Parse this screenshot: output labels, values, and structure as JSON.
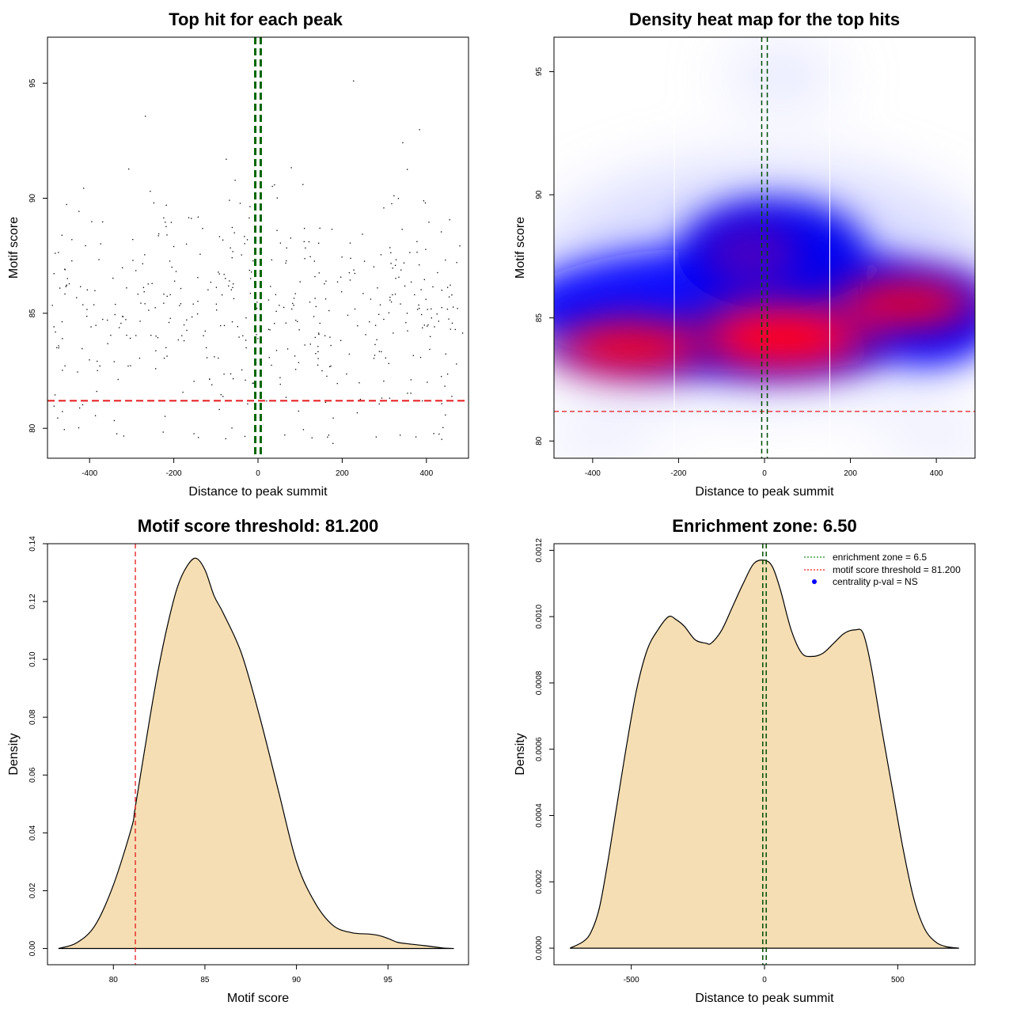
{
  "chart_data": [
    {
      "type": "scatter",
      "title": "Top hit for each peak",
      "xlabel": "Distance to peak summit",
      "ylabel": "Motif score",
      "xlim": [
        -500,
        500
      ],
      "ylim": [
        78.7,
        97.0
      ],
      "x_ticks": [
        "-400",
        "-200",
        "0",
        "200",
        "400"
      ],
      "y_ticks": [
        "80",
        "85",
        "90",
        "95"
      ],
      "threshold_y": 81.2,
      "center_lines_x": [
        -6.5,
        6.5
      ],
      "line_colors": {
        "threshold": "#e41a1c",
        "center": "#006400"
      },
      "point_color": "#000000"
    },
    {
      "type": "heatmap",
      "title": "Density heat map for the top hits",
      "xlabel": "Distance to peak summit",
      "ylabel": "Motif score",
      "xlim": [
        -490,
        490
      ],
      "ylim": [
        79.3,
        96.4
      ],
      "x_ticks": [
        "-400",
        "-200",
        "0",
        "200",
        "400"
      ],
      "y_ticks": [
        "80",
        "85",
        "90",
        "95"
      ],
      "zone_lines_x": [
        -210,
        152
      ],
      "threshold_y": 81.2,
      "center_lines_x": [
        -6.5,
        6.5
      ],
      "colors": {
        "low": "#ffffff",
        "mid": "#0000ff",
        "high": "#ff0000"
      },
      "hotspots": [
        {
          "x": 40,
          "y": 84.2,
          "intensity": 1.0
        },
        {
          "x": -310,
          "y": 83.8,
          "intensity": 0.7
        },
        {
          "x": 330,
          "y": 85.6,
          "intensity": 0.6
        }
      ]
    },
    {
      "type": "area",
      "title": "Motif score threshold: 81.200",
      "xlabel": "Motif score",
      "ylabel": "Density",
      "xlim": [
        76.4,
        99.4
      ],
      "ylim": [
        -0.0056,
        0.14
      ],
      "x_ticks": [
        "80",
        "85",
        "90",
        "95"
      ],
      "y_ticks": [
        "0.00",
        "0.02",
        "0.04",
        "0.06",
        "0.08",
        "0.10",
        "0.12",
        "0.14"
      ],
      "threshold_x": 81.2,
      "fill_color": "#f5deb3",
      "x": [
        77.0,
        78.0,
        79.0,
        80.0,
        81.0,
        81.2,
        82.0,
        82.5,
        83.0,
        83.5,
        84.0,
        84.5,
        85.0,
        85.5,
        86.0,
        87.0,
        88.0,
        89.0,
        90.0,
        91.0,
        92.0,
        93.0,
        94.0,
        94.5,
        95.0,
        95.5,
        96.0,
        97.0,
        98.0,
        98.6
      ],
      "y": [
        0.0,
        0.002,
        0.008,
        0.022,
        0.042,
        0.049,
        0.08,
        0.098,
        0.113,
        0.125,
        0.132,
        0.135,
        0.131,
        0.122,
        0.116,
        0.102,
        0.08,
        0.055,
        0.03,
        0.016,
        0.008,
        0.0055,
        0.005,
        0.0045,
        0.0035,
        0.0022,
        0.0017,
        0.001,
        0.0002,
        0.0
      ]
    },
    {
      "type": "area",
      "title": "Enrichment zone: 6.50",
      "xlabel": "Distance to peak summit",
      "ylabel": "Density",
      "xlim": [
        -790,
        790
      ],
      "ylim": [
        -5e-05,
        0.00122
      ],
      "x_ticks": [
        "-500",
        "0",
        "500"
      ],
      "y_ticks": [
        "0.0000",
        "0.0002",
        "0.0004",
        "0.0006",
        "0.0008",
        "0.0010",
        "0.0012"
      ],
      "center_lines_x": [
        -6.5,
        6.5
      ],
      "fill_color": "#f5deb3",
      "legend": {
        "position": "top-right",
        "entries": [
          {
            "label": "enrichment zone = 6.5",
            "color": "#228b22",
            "style": "dotted-line"
          },
          {
            "label": "motif score threshold = 81.200",
            "color": "#e41a1c",
            "style": "dotted-line"
          },
          {
            "label": "centrality p-val = NS",
            "color": "#0000ff",
            "style": "point"
          }
        ]
      },
      "x": [
        -730,
        -680,
        -650,
        -620,
        -590,
        -560,
        -520,
        -480,
        -440,
        -400,
        -360,
        -330,
        -300,
        -260,
        -220,
        -200,
        -160,
        -120,
        -80,
        -40,
        0,
        30,
        60,
        100,
        140,
        180,
        220,
        260,
        300,
        340,
        370,
        400,
        440,
        480,
        520,
        560,
        600,
        640,
        680,
        730
      ],
      "y": [
        0.0,
        2e-05,
        5e-05,
        0.00012,
        0.00025,
        0.0004,
        0.0006,
        0.00078,
        0.0009,
        0.00096,
        0.001,
        0.00099,
        0.00097,
        0.00093,
        0.00092,
        0.00092,
        0.00096,
        0.00103,
        0.0011,
        0.00116,
        0.00117,
        0.00115,
        0.00108,
        0.00096,
        0.00089,
        0.00088,
        0.00089,
        0.00092,
        0.00095,
        0.00096,
        0.00095,
        0.00085,
        0.00066,
        0.00048,
        0.0003,
        0.00015,
        6e-05,
        2e-05,
        5e-06,
        0.0
      ]
    }
  ]
}
